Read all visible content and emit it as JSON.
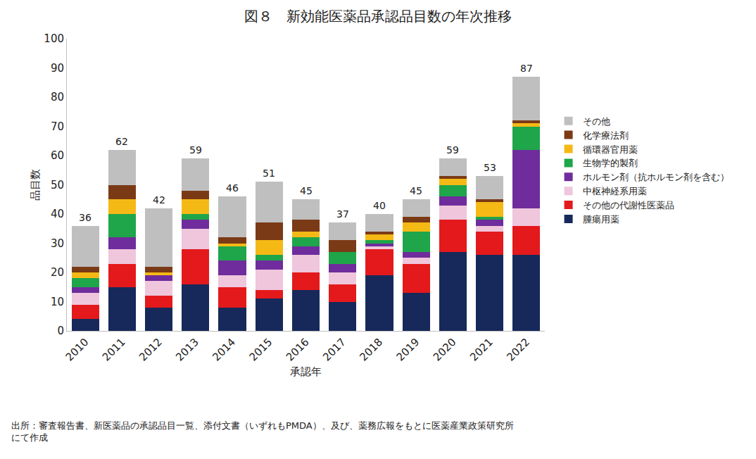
{
  "chart_data": {
    "type": "bar",
    "title": "図８　新効能医薬品承認品目数の年次推移",
    "x_label": "承認年",
    "y_label": "品目数",
    "source": [
      "出所：審査報告書、新医薬品の承認品目一覧、添付文書（いずれもPMDA）、及び、薬務広報をもとに医薬産業政策研究所",
      "にて作成"
    ],
    "stacked": true,
    "grid": false,
    "legend": "right",
    "categories": [
      "2010",
      "2011",
      "2012",
      "2013",
      "2014",
      "2015",
      "2016",
      "2017",
      "2018",
      "2019",
      "2020",
      "2021",
      "2022"
    ],
    "totals": [
      36,
      62,
      42,
      59,
      46,
      51,
      45,
      37,
      40,
      45,
      59,
      53,
      87
    ],
    "ylim": [
      0,
      100
    ],
    "yticks": [
      0,
      10,
      20,
      30,
      40,
      50,
      60,
      70,
      80,
      90,
      100
    ],
    "series": [
      {
        "name": "腫瘍用薬",
        "color": "#16295a",
        "values": [
          4,
          15,
          8,
          16,
          8,
          11,
          14,
          10,
          19,
          13,
          27,
          26,
          26
        ]
      },
      {
        "name": "その他の代謝性医薬品",
        "color": "#e4191c",
        "values": [
          5,
          8,
          4,
          12,
          7,
          3,
          6,
          6,
          9,
          10,
          11,
          8,
          10
        ]
      },
      {
        "name": "中枢神経系用薬",
        "color": "#efc6dc",
        "values": [
          4,
          5,
          5,
          7,
          4,
          7,
          6,
          4,
          1,
          2,
          5,
          2,
          6
        ]
      },
      {
        "name": "ホルモン剤（抗ホルモン剤を含む）",
        "color": "#6f2c9c",
        "values": [
          2,
          4,
          2,
          3,
          5,
          3,
          3,
          3,
          1,
          2,
          3,
          2,
          20
        ]
      },
      {
        "name": "生物学的製剤",
        "color": "#1fa54a",
        "values": [
          3,
          8,
          0,
          2,
          5,
          2,
          3,
          4,
          1,
          7,
          4,
          1,
          8
        ]
      },
      {
        "name": "循環器官用薬",
        "color": "#f5b916",
        "values": [
          2,
          5,
          1,
          5,
          1,
          5,
          2,
          0,
          2,
          3,
          2,
          5,
          1
        ]
      },
      {
        "name": "化学療法剤",
        "color": "#7b3a16",
        "values": [
          2,
          5,
          2,
          3,
          2,
          6,
          4,
          4,
          1,
          2,
          1,
          1,
          1
        ]
      },
      {
        "name": "その他",
        "color": "#bfbfbf",
        "values": [
          14,
          12,
          20,
          11,
          14,
          14,
          7,
          6,
          6,
          6,
          6,
          8,
          15
        ]
      }
    ]
  }
}
